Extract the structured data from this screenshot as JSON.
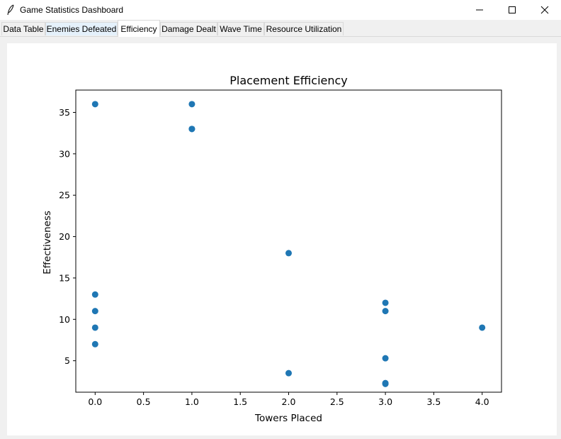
{
  "window": {
    "title": "Game Statistics Dashboard"
  },
  "tabs": [
    {
      "label": "Data Table"
    },
    {
      "label": "Enemies Defeated"
    },
    {
      "label": "Efficiency"
    },
    {
      "label": "Damage Dealt"
    },
    {
      "label": "Wave Time"
    },
    {
      "label": "Resource Utilization"
    }
  ],
  "selected_tab": "Efficiency",
  "chart_data": {
    "type": "scatter",
    "title": "Placement Efficiency",
    "xlabel": "Towers Placed",
    "ylabel": "Effectiveness",
    "xlim": [
      -0.2,
      4.2
    ],
    "ylim": [
      1.2,
      37.7
    ],
    "xticks": [
      "0.0",
      "0.5",
      "1.0",
      "1.5",
      "2.0",
      "2.5",
      "3.0",
      "3.5",
      "4.0"
    ],
    "yticks": [
      "5",
      "10",
      "15",
      "20",
      "25",
      "30",
      "35"
    ],
    "marker_color": "#1f77b4",
    "grid": false,
    "points": [
      {
        "x": 0,
        "y": 36
      },
      {
        "x": 0,
        "y": 13
      },
      {
        "x": 0,
        "y": 11
      },
      {
        "x": 0,
        "y": 9
      },
      {
        "x": 0,
        "y": 7
      },
      {
        "x": 1,
        "y": 36
      },
      {
        "x": 1,
        "y": 33
      },
      {
        "x": 1,
        "y": 33
      },
      {
        "x": 2,
        "y": 18
      },
      {
        "x": 2,
        "y": 3.5
      },
      {
        "x": 3,
        "y": 12
      },
      {
        "x": 3,
        "y": 11
      },
      {
        "x": 3,
        "y": 5.3
      },
      {
        "x": 3,
        "y": 2.3
      },
      {
        "x": 3,
        "y": 2.2
      },
      {
        "x": 4,
        "y": 9
      }
    ]
  }
}
